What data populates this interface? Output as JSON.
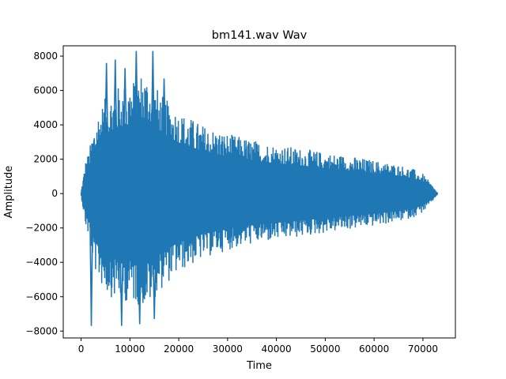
{
  "chart_data": {
    "type": "line",
    "title": "bm141.wav Wav",
    "xlabel": "Time",
    "ylabel": "Amplitude",
    "xlim": [
      -3650,
      76650
    ],
    "ylim": [
      -8400,
      8600
    ],
    "x_ticks": [
      0,
      10000,
      20000,
      30000,
      40000,
      50000,
      60000,
      70000
    ],
    "y_ticks": [
      -8000,
      -6000,
      -4000,
      -2000,
      0,
      2000,
      4000,
      6000,
      8000
    ],
    "grid": false,
    "series": [
      {
        "color": "#1f77b4",
        "x_range": [
          0,
          73000
        ],
        "envelope": {
          "x": [
            0,
            300,
            900,
            1500,
            2000,
            2500,
            3500,
            5000,
            7000,
            9000,
            11000,
            12500,
            14000,
            15000,
            17000,
            20000,
            25000,
            30000,
            35000,
            40000,
            45000,
            50000,
            55000,
            60000,
            65000,
            68000,
            70000,
            71500,
            72500,
            73000
          ],
          "upper": [
            100,
            700,
            1900,
            2400,
            3000,
            3800,
            4800,
            5600,
            6200,
            6400,
            6800,
            7200,
            6900,
            6400,
            5600,
            4800,
            4000,
            3500,
            3150,
            2850,
            2650,
            2400,
            2200,
            1950,
            1700,
            1450,
            1150,
            650,
            250,
            50
          ],
          "lower": [
            -100,
            -700,
            -1900,
            -2500,
            -3000,
            -4200,
            -5000,
            -5800,
            -6200,
            -6300,
            -6400,
            -6600,
            -6500,
            -6100,
            -5400,
            -4600,
            -3800,
            -3300,
            -2950,
            -2750,
            -2550,
            -2300,
            -2100,
            -1900,
            -1650,
            -1400,
            -1100,
            -650,
            -250,
            -50
          ]
        },
        "peaks": [
          {
            "x": 2100,
            "y": -7700
          },
          {
            "x": 5200,
            "y": 7600
          },
          {
            "x": 7000,
            "y": 7800
          },
          {
            "x": 9000,
            "y": 7300
          },
          {
            "x": 11300,
            "y": 8300
          },
          {
            "x": 12000,
            "y": -7600
          },
          {
            "x": 14700,
            "y": 8300
          },
          {
            "x": 15000,
            "y": -7300
          },
          {
            "x": 17000,
            "y": 6700
          },
          {
            "x": 8300,
            "y": -7700
          }
        ]
      }
    ]
  }
}
